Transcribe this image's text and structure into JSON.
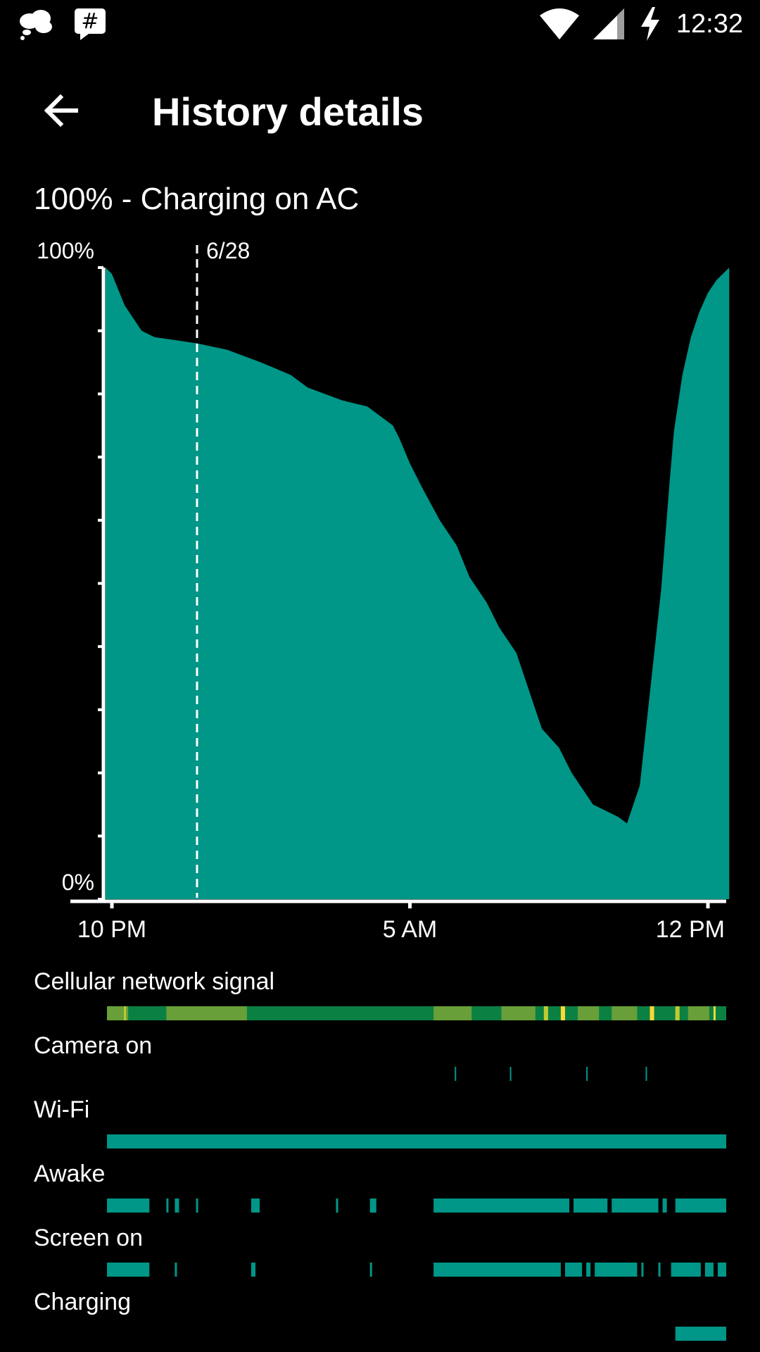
{
  "status_bar": {
    "time": "12:32",
    "icons": [
      "cloud-notification-icon",
      "hashtag-notification-icon",
      "wifi-icon",
      "cell-signal-icon",
      "charging-bolt-icon"
    ]
  },
  "toolbar": {
    "title": "History details",
    "back_icon": "arrow-left-icon"
  },
  "battery_status": "100% - Charging on AC",
  "colors": {
    "accent": "#009688",
    "background": "#000000",
    "signal_good": "#0B8043",
    "signal_moderate": "#689F38",
    "signal_weak": "#C0CA33",
    "signal_poor": "#FDD835"
  },
  "chart_data": {
    "type": "area",
    "ytick_labels": {
      "top": "100%",
      "bottom": "0%"
    },
    "ylim": [
      0,
      100
    ],
    "xtick_labels": [
      "10 PM",
      "5 AM",
      "12 PM"
    ],
    "xtick_hours": [
      0,
      7,
      14
    ],
    "x_unit": "hours since 10 PM",
    "xlim": [
      -0.15,
      14.5
    ],
    "date_marker": {
      "label": "6/28",
      "hour": 2.0
    },
    "series": [
      {
        "x": [
          -0.15,
          0.0,
          0.3,
          0.7,
          1.0,
          2.0,
          2.7,
          3.5,
          4.2,
          4.6,
          5.0,
          5.4,
          6.0,
          6.6,
          6.75,
          7.0,
          7.3,
          7.7,
          8.1,
          8.4,
          8.8,
          9.1,
          9.5,
          9.8,
          10.1,
          10.5,
          10.8,
          11.0,
          11.3,
          11.6,
          11.9,
          12.1,
          12.4,
          12.9,
          13.1,
          13.2,
          13.4,
          13.6,
          13.8,
          14.0,
          14.2,
          14.5
        ],
        "y": [
          100,
          99,
          94,
          90,
          89,
          88,
          87,
          85,
          83,
          81,
          80,
          79,
          78,
          75,
          73,
          69,
          65,
          60,
          56,
          51,
          47,
          43,
          39,
          33,
          27,
          24,
          20,
          18,
          15,
          14,
          13,
          12,
          18,
          49,
          66,
          74,
          83,
          89,
          93,
          96,
          98,
          100
        ]
      }
    ]
  },
  "tracks": [
    {
      "label": "Cellular network signal",
      "name": "cellular-network-signal",
      "kind": "signal"
    },
    {
      "label": "Camera on",
      "name": "camera-on",
      "kind": "ticks",
      "ticks": [
        8.1,
        9.4,
        11.2,
        12.6
      ]
    },
    {
      "label": "Wi-Fi",
      "name": "wifi",
      "kind": "bars",
      "bars": [
        [
          -0.1,
          14.5
        ]
      ]
    },
    {
      "label": "Awake",
      "name": "awake",
      "kind": "bars",
      "bars": [
        [
          -0.1,
          0.9
        ],
        [
          1.3,
          1.35
        ],
        [
          1.5,
          1.6
        ],
        [
          2.0,
          2.05
        ],
        [
          3.3,
          3.5
        ],
        [
          5.3,
          5.35
        ],
        [
          6.1,
          6.25
        ],
        [
          7.6,
          10.8
        ],
        [
          10.9,
          11.7
        ],
        [
          11.8,
          12.9
        ],
        [
          13.0,
          13.1
        ],
        [
          13.3,
          14.5
        ]
      ]
    },
    {
      "label": "Screen on",
      "name": "screen-on",
      "kind": "bars",
      "bars": [
        [
          -0.1,
          0.9
        ],
        [
          1.5,
          1.55
        ],
        [
          3.3,
          3.4
        ],
        [
          6.1,
          6.15
        ],
        [
          7.6,
          10.6
        ],
        [
          10.7,
          11.1
        ],
        [
          11.2,
          11.3
        ],
        [
          11.4,
          12.4
        ],
        [
          12.5,
          12.55
        ],
        [
          12.9,
          12.95
        ],
        [
          13.2,
          13.9
        ],
        [
          14.0,
          14.2
        ],
        [
          14.3,
          14.5
        ]
      ]
    },
    {
      "label": "Charging",
      "name": "charging",
      "kind": "bars",
      "bars": [
        [
          13.3,
          14.5
        ]
      ]
    }
  ],
  "signal_segments": [
    [
      -0.1,
      0.4,
      "signal_moderate"
    ],
    [
      0.3,
      0.35,
      "signal_weak"
    ],
    [
      0.5,
      1.3,
      "signal_good"
    ],
    [
      1.3,
      3.2,
      "signal_moderate"
    ],
    [
      3.4,
      3.5,
      "signal_moderate"
    ],
    [
      3.2,
      7.5,
      "signal_good"
    ],
    [
      7.6,
      8.5,
      "signal_moderate"
    ],
    [
      8.5,
      9.2,
      "signal_good"
    ],
    [
      9.2,
      10.0,
      "signal_moderate"
    ],
    [
      10.2,
      10.3,
      "signal_weak"
    ],
    [
      10.6,
      10.7,
      "signal_poor"
    ],
    [
      11.0,
      11.5,
      "signal_moderate"
    ],
    [
      11.8,
      12.4,
      "signal_moderate"
    ],
    [
      12.7,
      12.8,
      "signal_poor"
    ],
    [
      13.3,
      13.4,
      "signal_weak"
    ],
    [
      13.6,
      14.1,
      "signal_moderate"
    ],
    [
      14.2,
      14.25,
      "signal_poor"
    ]
  ]
}
